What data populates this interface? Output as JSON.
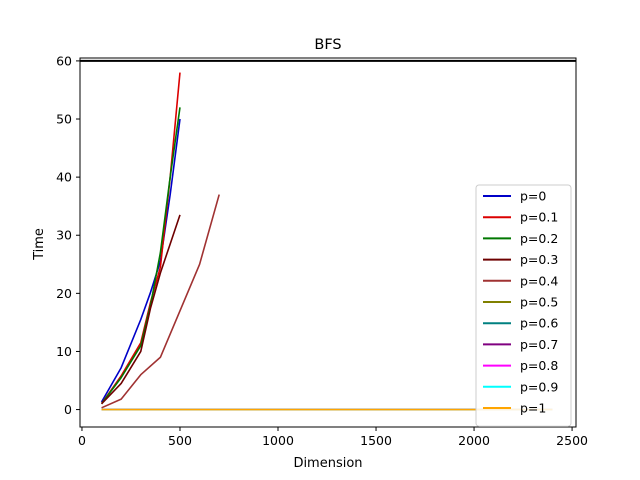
{
  "chart_data": {
    "type": "line",
    "title": "BFS",
    "xlabel": "Dimension",
    "ylabel": "Time",
    "xlim": [
      -10,
      2520
    ],
    "ylim": [
      -3,
      60.5
    ],
    "xticks": [
      0,
      500,
      1000,
      1500,
      2000,
      2500
    ],
    "yticks": [
      0,
      10,
      20,
      30,
      40,
      50,
      60
    ],
    "grid": false,
    "legend_position": "lower-right",
    "reference_line": {
      "y": 60,
      "color": "#000000"
    },
    "series": [
      {
        "name": "p=0",
        "color": "#0000c8",
        "x": [
          100,
          200,
          300,
          350,
          400,
          450,
          500
        ],
        "y": [
          1.3,
          7.2,
          15.5,
          20.2,
          25.5,
          37,
          50
        ]
      },
      {
        "name": "p=0.1",
        "color": "#dc0000",
        "x": [
          100,
          200,
          300,
          350,
          400,
          450,
          500
        ],
        "y": [
          1.0,
          5.8,
          11.5,
          18.5,
          24.5,
          40,
          58
        ]
      },
      {
        "name": "p=0.2",
        "color": "#007800",
        "x": [
          100,
          200,
          300,
          350,
          400,
          450,
          500
        ],
        "y": [
          1.0,
          5.5,
          11,
          18,
          27,
          40,
          52
        ]
      },
      {
        "name": "p=0.3",
        "color": "#6e0000",
        "x": [
          100,
          200,
          300,
          350,
          400,
          450,
          500
        ],
        "y": [
          1.0,
          4.5,
          10,
          17.5,
          23.5,
          28.5,
          33.5
        ]
      },
      {
        "name": "p=0.4",
        "color": "#a03232",
        "x": [
          100,
          200,
          300,
          400,
          500,
          600,
          700
        ],
        "y": [
          0.3,
          1.8,
          6,
          9,
          17,
          25,
          37
        ]
      },
      {
        "name": "p=0.5",
        "color": "#808000",
        "x": [
          100,
          2400
        ],
        "y": [
          0,
          0
        ]
      },
      {
        "name": "p=0.6",
        "color": "#008080",
        "x": [
          100,
          2400
        ],
        "y": [
          0,
          0
        ]
      },
      {
        "name": "p=0.7",
        "color": "#800080",
        "x": [
          100,
          2400
        ],
        "y": [
          0,
          0
        ]
      },
      {
        "name": "p=0.8",
        "color": "#ff00ff",
        "x": [
          100,
          2400
        ],
        "y": [
          0,
          0
        ]
      },
      {
        "name": "p=0.9",
        "color": "#00ffff",
        "x": [
          100,
          2400
        ],
        "y": [
          0,
          0
        ]
      },
      {
        "name": "p=1",
        "color": "#ffa500",
        "x": [
          100,
          2400
        ],
        "y": [
          0,
          0
        ]
      }
    ]
  }
}
